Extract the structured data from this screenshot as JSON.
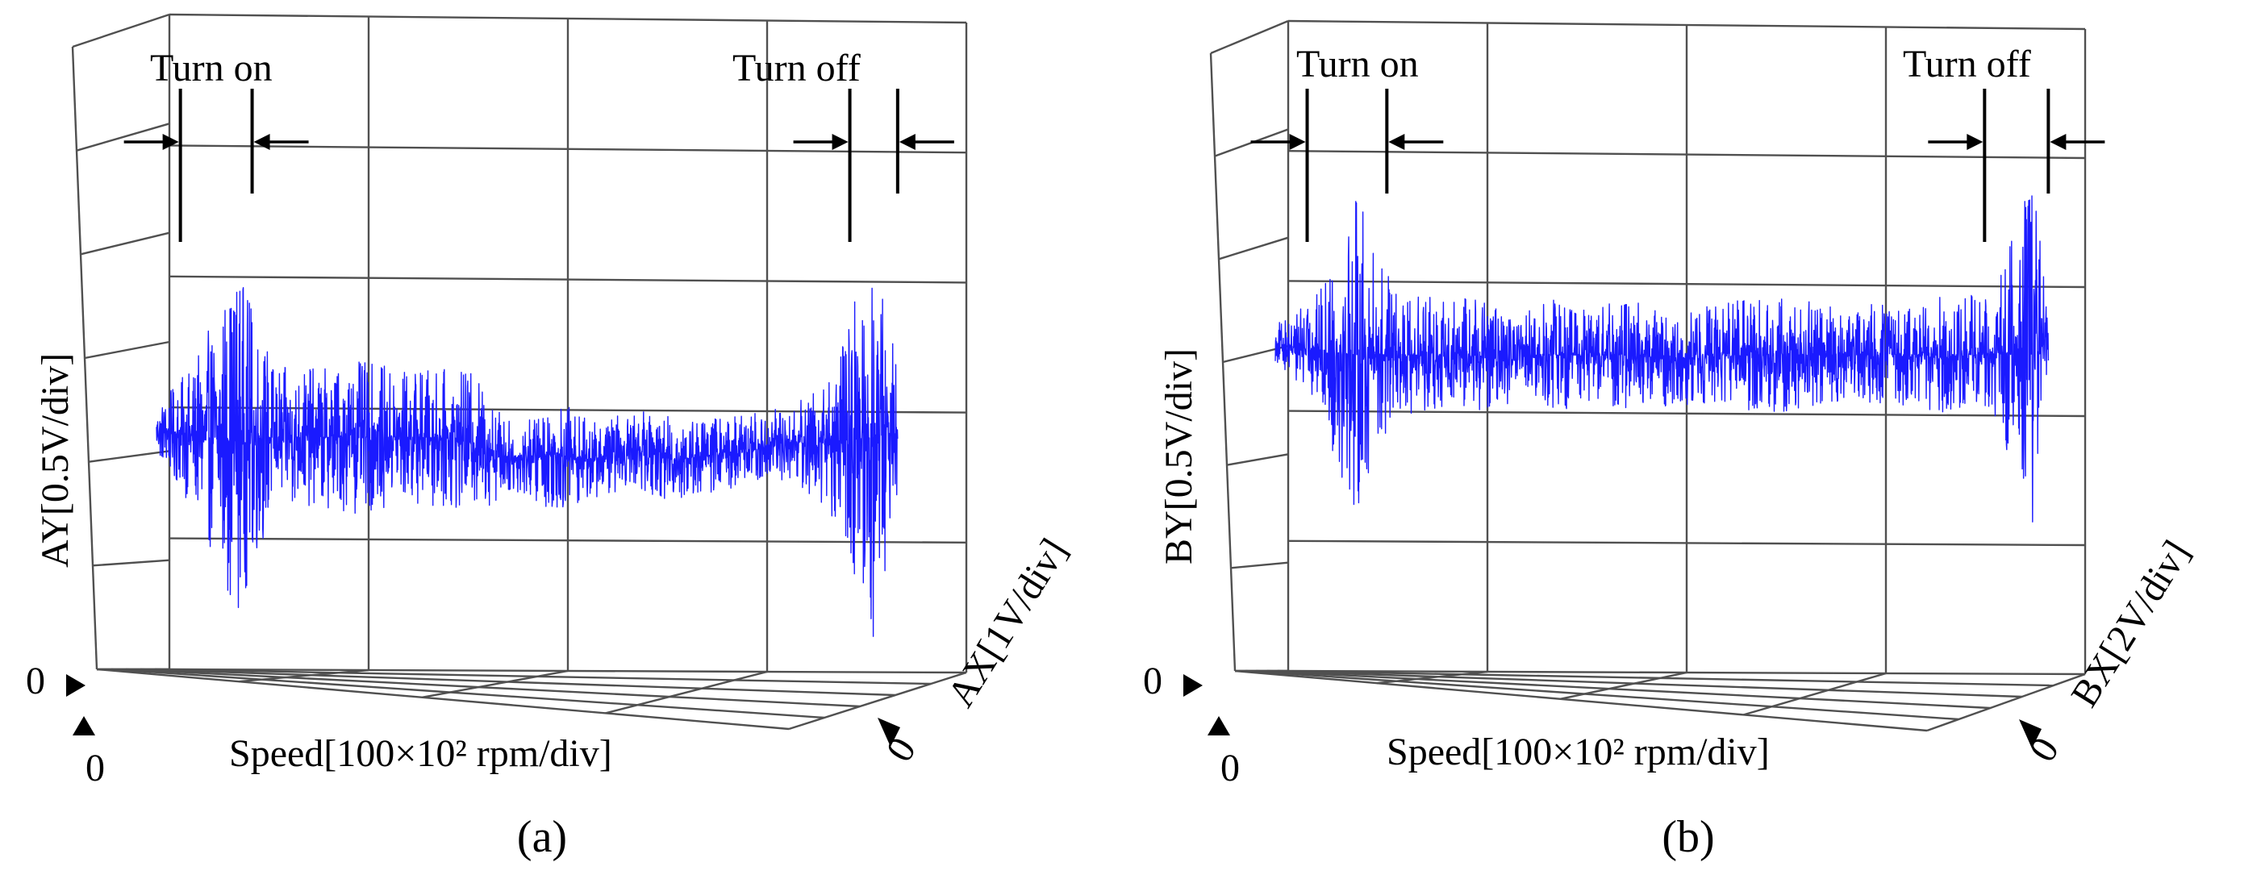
{
  "figure": {
    "panels": [
      {
        "caption": "(a)",
        "y_label": "AY[0.5V/div]",
        "x_label": "Speed[100×10² rpm/div]",
        "z_label": "AX[1V/div]",
        "origin_y": "0",
        "origin_x": "0",
        "origin_z": "0",
        "annotation_on": "Turn on",
        "annotation_off": "Turn off"
      },
      {
        "caption": "(b)",
        "y_label": "BY[0.5V/div]",
        "x_label": "Speed[100×10² rpm/div]",
        "z_label": "BX[2V/div]",
        "origin_y": "0",
        "origin_x": "0",
        "origin_z": "0",
        "annotation_on": "Turn on",
        "annotation_off": "Turn off"
      }
    ]
  },
  "chart_data": [
    {
      "type": "line",
      "title": "",
      "xlabel": "Speed[100×10² rpm/div]",
      "ylabel": "AY[0.5V/div]",
      "zlabel": "AX[1V/div]",
      "x_divisions": 4,
      "y_divisions": 5,
      "z_divisions": 5,
      "grid": true,
      "signal_color": "#1a1aff",
      "turn_on": [
        0.03,
        0.12
      ],
      "turn_off": [
        0.87,
        0.93
      ],
      "series": [
        {
          "x": [
            0.0,
            0.05,
            0.1,
            0.15,
            0.2,
            0.25,
            0.3,
            0.35,
            0.4,
            0.45,
            0.5,
            0.55,
            0.6,
            0.65,
            0.7,
            0.75,
            0.8,
            0.85,
            0.9,
            0.93
          ],
          "center": [
            2.05,
            2.0,
            2.0,
            2.0,
            2.0,
            2.0,
            2.0,
            2.0,
            1.95,
            1.8,
            1.85,
            1.8,
            1.9,
            1.8,
            1.85,
            1.9,
            1.95,
            1.95,
            2.0,
            2.05
          ],
          "half_range": [
            0.2,
            0.6,
            1.4,
            0.55,
            0.55,
            0.6,
            0.55,
            0.55,
            0.55,
            0.25,
            0.45,
            0.3,
            0.3,
            0.35,
            0.3,
            0.3,
            0.3,
            0.6,
            1.6,
            0.5
          ]
        }
      ]
    },
    {
      "type": "line",
      "title": "",
      "xlabel": "Speed[100×10² rpm/div]",
      "ylabel": "BY[0.5V/div]",
      "zlabel": "BX[2V/div]",
      "x_divisions": 4,
      "y_divisions": 5,
      "z_divisions": 5,
      "grid": true,
      "signal_color": "#1a1aff",
      "turn_on": [
        0.04,
        0.14
      ],
      "turn_off": [
        0.89,
        0.97
      ],
      "series": [
        {
          "x": [
            0.0,
            0.05,
            0.1,
            0.15,
            0.2,
            0.25,
            0.3,
            0.35,
            0.4,
            0.45,
            0.5,
            0.55,
            0.6,
            0.65,
            0.7,
            0.75,
            0.8,
            0.85,
            0.9,
            0.95,
            0.97
          ],
          "center": [
            2.85,
            2.8,
            2.75,
            2.75,
            2.75,
            2.75,
            2.7,
            2.75,
            2.75,
            2.75,
            2.7,
            2.75,
            2.75,
            2.75,
            2.75,
            2.75,
            2.75,
            2.75,
            2.75,
            2.8,
            2.85
          ],
          "half_range": [
            0.15,
            0.4,
            1.3,
            0.5,
            0.45,
            0.45,
            0.35,
            0.45,
            0.4,
            0.45,
            0.35,
            0.4,
            0.45,
            0.45,
            0.4,
            0.4,
            0.4,
            0.5,
            0.45,
            1.4,
            0.3
          ]
        }
      ]
    }
  ]
}
